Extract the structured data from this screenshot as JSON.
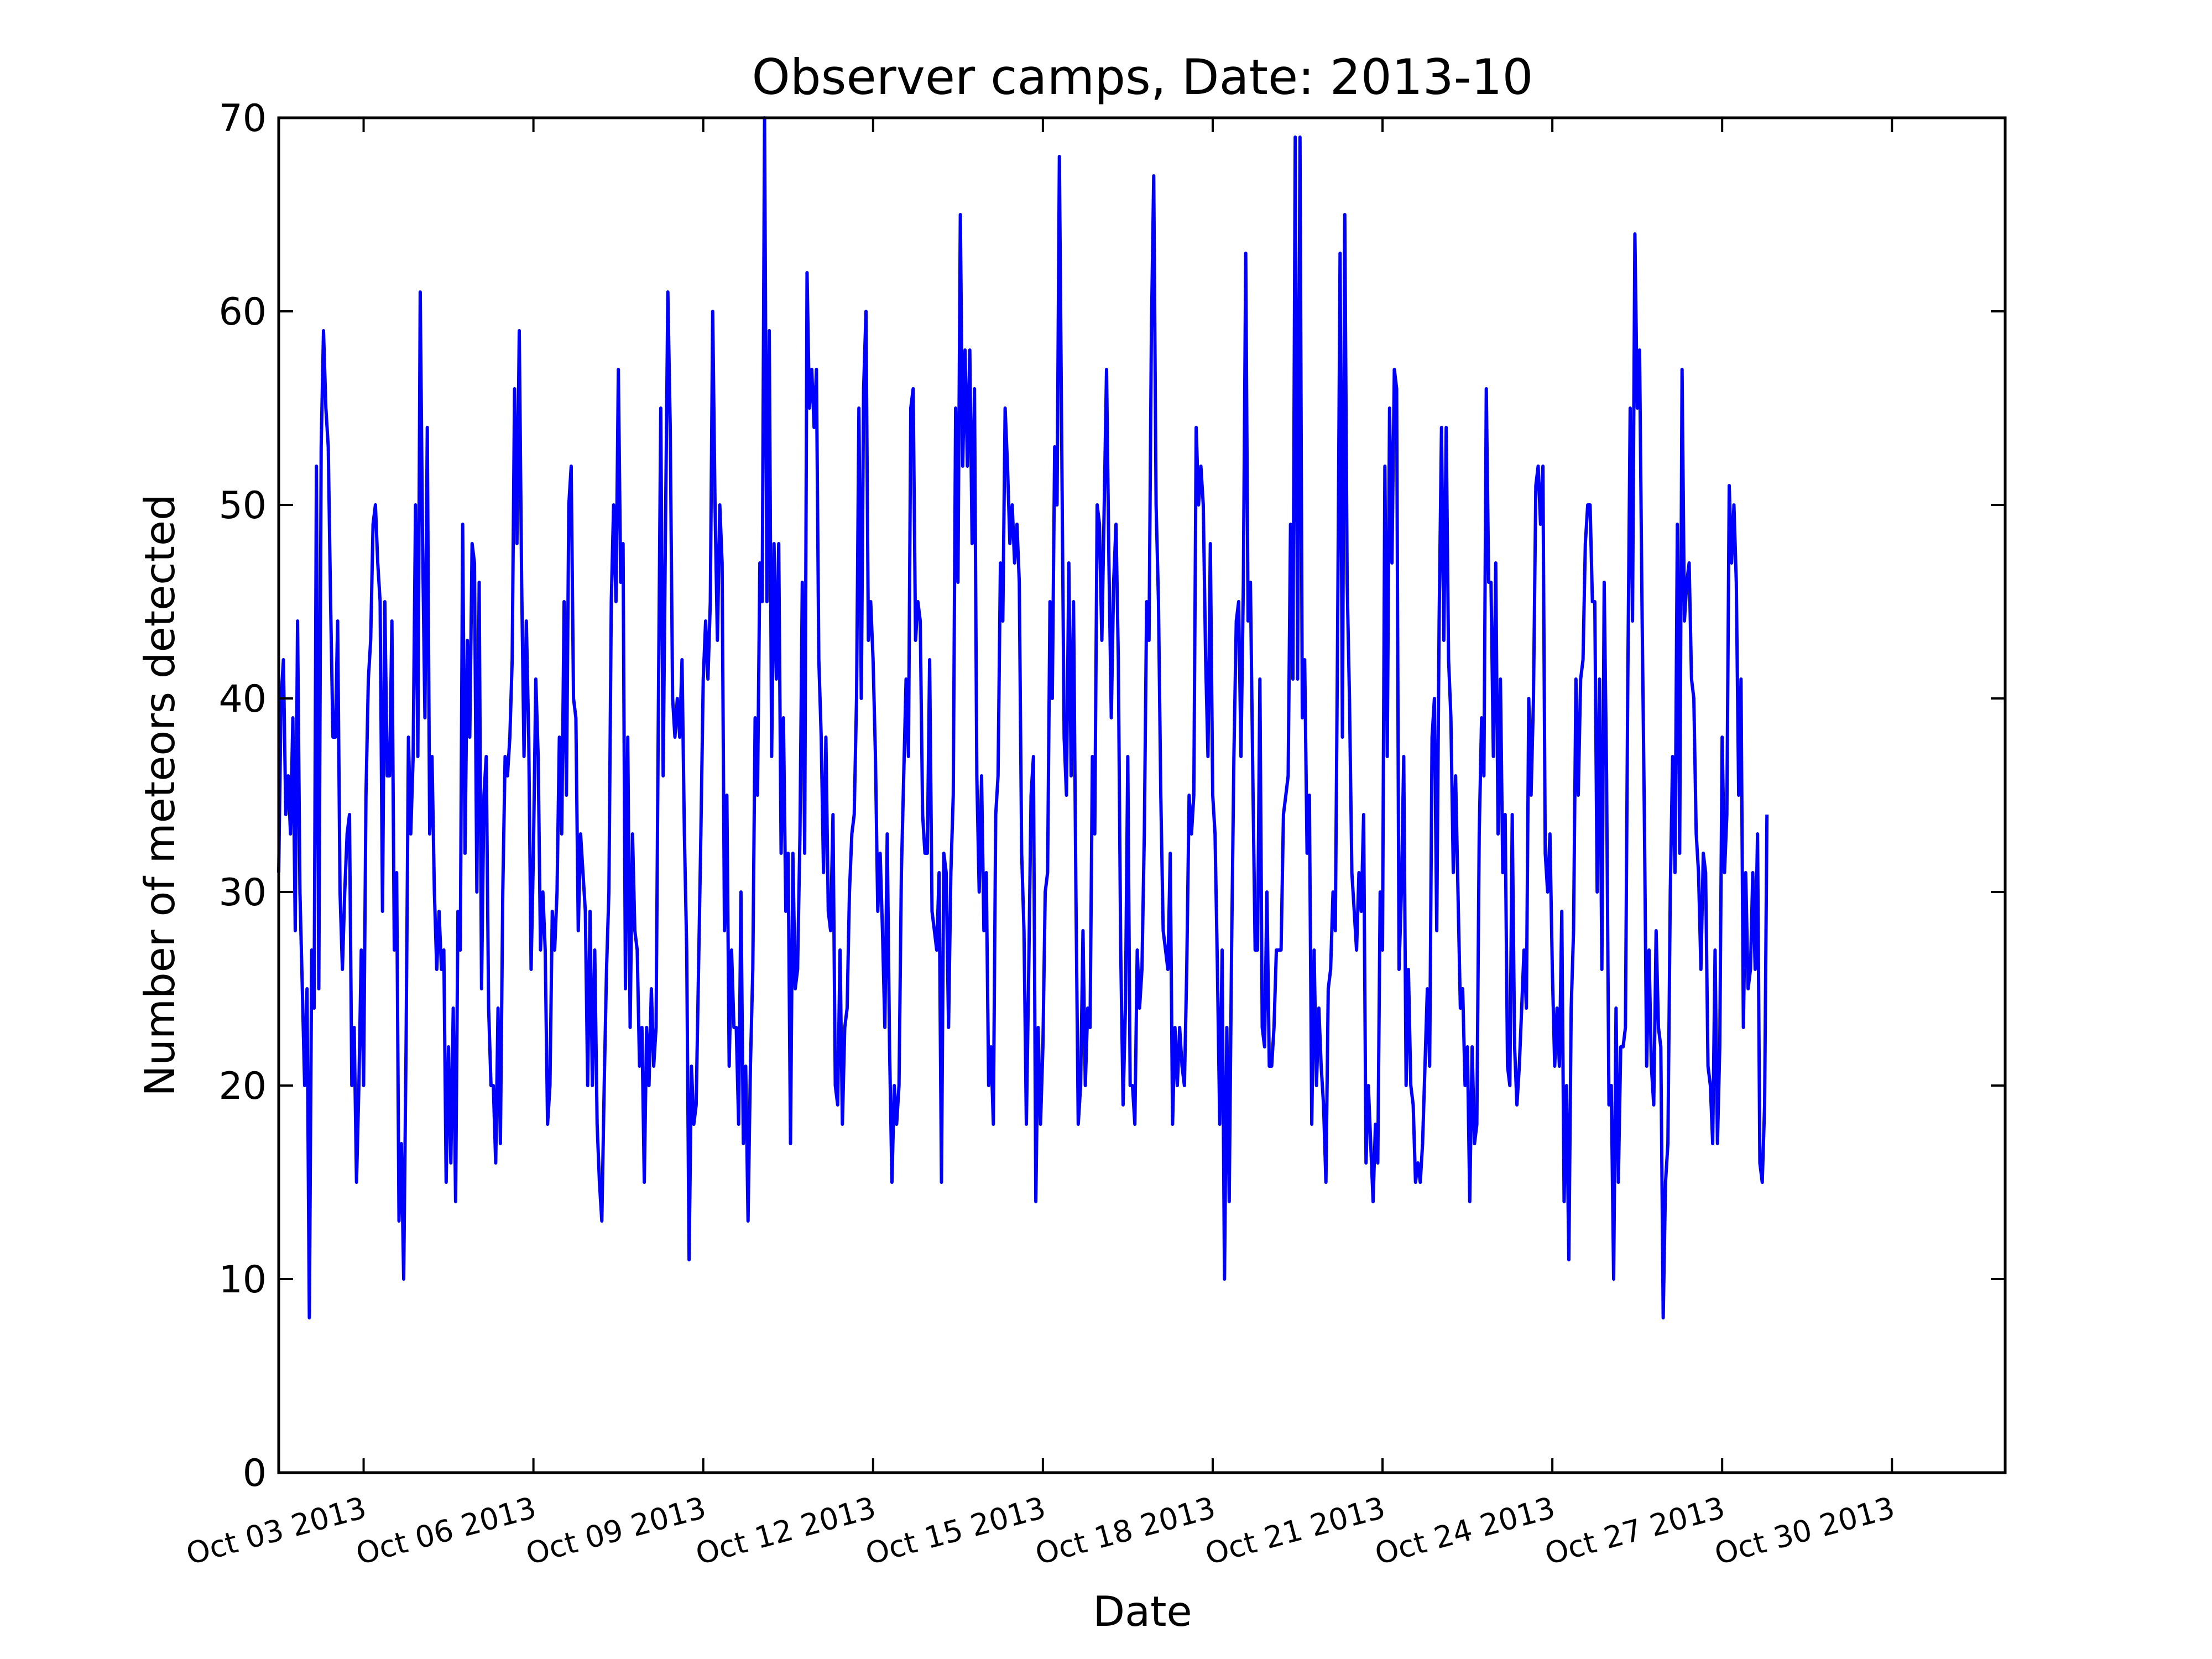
{
  "chart_data": {
    "type": "line",
    "title": "Observer camps, Date: 2013-10",
    "xlabel": "Date",
    "ylabel": "Number of meteors detected",
    "xlim": [
      "2013-10-01T12:00",
      "2013-11-01T00:00"
    ],
    "ylim": [
      0,
      70
    ],
    "yticks": [
      0,
      10,
      20,
      30,
      40,
      50,
      60,
      70
    ],
    "xticks": [
      {
        "date": "2013-10-03",
        "label": "Oct 03 2013"
      },
      {
        "date": "2013-10-06",
        "label": "Oct 06 2013"
      },
      {
        "date": "2013-10-09",
        "label": "Oct 09 2013"
      },
      {
        "date": "2013-10-12",
        "label": "Oct 12 2013"
      },
      {
        "date": "2013-10-15",
        "label": "Oct 15 2013"
      },
      {
        "date": "2013-10-18",
        "label": "Oct 18 2013"
      },
      {
        "date": "2013-10-21",
        "label": "Oct 21 2013"
      },
      {
        "date": "2013-10-24",
        "label": "Oct 24 2013"
      },
      {
        "date": "2013-10-27",
        "label": "Oct 27 2013"
      },
      {
        "date": "2013-10-30",
        "label": "Oct 30 2013"
      }
    ],
    "grid": false,
    "line_color": "#0000ff",
    "series": [
      {
        "sampling": "hourly",
        "start": "2013-10-01T12:00",
        "values": [
          31,
          40,
          42,
          34,
          36,
          33,
          39,
          28,
          44,
          30,
          25,
          20,
          25,
          8,
          27,
          24,
          52,
          25,
          53,
          59,
          55,
          53,
          45,
          38,
          38,
          44,
          30,
          26,
          30,
          33,
          34,
          20,
          23,
          15,
          20,
          27,
          20,
          35,
          41,
          43,
          49,
          50,
          47,
          45,
          29,
          45,
          36,
          36,
          44,
          27,
          31,
          13,
          17,
          10,
          22,
          38,
          33,
          37,
          50,
          37,
          61,
          48,
          39,
          54,
          33,
          37,
          30,
          26,
          29,
          26,
          27,
          15,
          22,
          16,
          24,
          14,
          29,
          27,
          49,
          32,
          43,
          38,
          48,
          47,
          30,
          46,
          25,
          35,
          37,
          24,
          20,
          20,
          16,
          24,
          17,
          30,
          37,
          36,
          38,
          42,
          56,
          48,
          59,
          46,
          37,
          44,
          38,
          26,
          32,
          41,
          37,
          27,
          30,
          27,
          18,
          20,
          29,
          27,
          30,
          38,
          33,
          45,
          35,
          50,
          52,
          40,
          39,
          28,
          33,
          31,
          29,
          20,
          29,
          20,
          27,
          18,
          15,
          13,
          20,
          26,
          30,
          45,
          50,
          45,
          57,
          46,
          48,
          25,
          38,
          23,
          33,
          28,
          27,
          21,
          23,
          15,
          23,
          20,
          25,
          21,
          23,
          40,
          55,
          36,
          49,
          61,
          54,
          40,
          38,
          40,
          38,
          42,
          33,
          27,
          11,
          21,
          18,
          19,
          26,
          33,
          41,
          44,
          41,
          45,
          60,
          50,
          43,
          50,
          47,
          28,
          35,
          21,
          27,
          23,
          23,
          18,
          30,
          17,
          21,
          13,
          21,
          26,
          39,
          35,
          47,
          45,
          70,
          45,
          59,
          37,
          48,
          41,
          48,
          32,
          39,
          29,
          32,
          17,
          32,
          25,
          26,
          33,
          46,
          32,
          62,
          55,
          57,
          54,
          57,
          42,
          38,
          31,
          38,
          29,
          28,
          34,
          20,
          19,
          27,
          18,
          23,
          24,
          30,
          33,
          34,
          40,
          55,
          40,
          56,
          60,
          43,
          45,
          42,
          37,
          29,
          32,
          28,
          23,
          33,
          22,
          15,
          20,
          18,
          20,
          31,
          36,
          41,
          37,
          55,
          56,
          43,
          45,
          44,
          34,
          32,
          32,
          42,
          29,
          28,
          27,
          31,
          15,
          32,
          31,
          23,
          31,
          35,
          55,
          46,
          65,
          52,
          58,
          52,
          58,
          48,
          56,
          36,
          30,
          36,
          28,
          31,
          20,
          22,
          18,
          34,
          36,
          47,
          44,
          55,
          52,
          48,
          50,
          47,
          49,
          46,
          32,
          28,
          18,
          26,
          35,
          37,
          14,
          23,
          18,
          22,
          30,
          31,
          45,
          40,
          53,
          50,
          68,
          53,
          38,
          35,
          47,
          36,
          45,
          30,
          18,
          20,
          28,
          20,
          24,
          23,
          37,
          33,
          50,
          49,
          43,
          50,
          57,
          47,
          39,
          46,
          49,
          42,
          27,
          19,
          24,
          37,
          20,
          20,
          18,
          27,
          24,
          26,
          33,
          45,
          43,
          59,
          67,
          50,
          45,
          35,
          28,
          27,
          26,
          32,
          18,
          23,
          20,
          23,
          21,
          20,
          26,
          35,
          33,
          35,
          54,
          50,
          52,
          50,
          42,
          37,
          48,
          35,
          33,
          26,
          18,
          27,
          10,
          23,
          14,
          27,
          37,
          44,
          45,
          37,
          46,
          63,
          44,
          46,
          36,
          27,
          27,
          41,
          23,
          22,
          30,
          21,
          21,
          23,
          27,
          27,
          27,
          34,
          35,
          36,
          49,
          41,
          69,
          41,
          69,
          39,
          42,
          32,
          35,
          18,
          27,
          20,
          24,
          21,
          19,
          15,
          25,
          26,
          30,
          28,
          44,
          63,
          38,
          65,
          46,
          40,
          31,
          29,
          27,
          31,
          29,
          34,
          16,
          20,
          17,
          14,
          18,
          16,
          30,
          27,
          52,
          37,
          55,
          47,
          57,
          56,
          26,
          30,
          37,
          20,
          26,
          20,
          19,
          15,
          16,
          15,
          17,
          21,
          25,
          21,
          38,
          40,
          28,
          44,
          54,
          43,
          54,
          42,
          39,
          31,
          36,
          30,
          24,
          25,
          20,
          22,
          14,
          22,
          17,
          18,
          33,
          39,
          36,
          56,
          46,
          46,
          37,
          47,
          33,
          41,
          31,
          34,
          21,
          20,
          34,
          22,
          19,
          21,
          24,
          27,
          24,
          40,
          35,
          40,
          51,
          52,
          49,
          52,
          32,
          30,
          33,
          26,
          21,
          24,
          21,
          29,
          14,
          20,
          11,
          24,
          28,
          41,
          35,
          41,
          42,
          48,
          50,
          50,
          45,
          45,
          30,
          41,
          26,
          46,
          36,
          19,
          20,
          10,
          24,
          15,
          22,
          22,
          23,
          41,
          55,
          44,
          64,
          55,
          58,
          45,
          34,
          21,
          27,
          21,
          19,
          28,
          23,
          22,
          8,
          15,
          17,
          30,
          37,
          31,
          49,
          32,
          57,
          44,
          46,
          47,
          41,
          40,
          33,
          31,
          26,
          32,
          31,
          21,
          20,
          17,
          27,
          17,
          22,
          38,
          31,
          34,
          51,
          47,
          50,
          46,
          35,
          41,
          23,
          31,
          25,
          26,
          31,
          26,
          33,
          16,
          15,
          19,
          34
        ]
      }
    ]
  }
}
